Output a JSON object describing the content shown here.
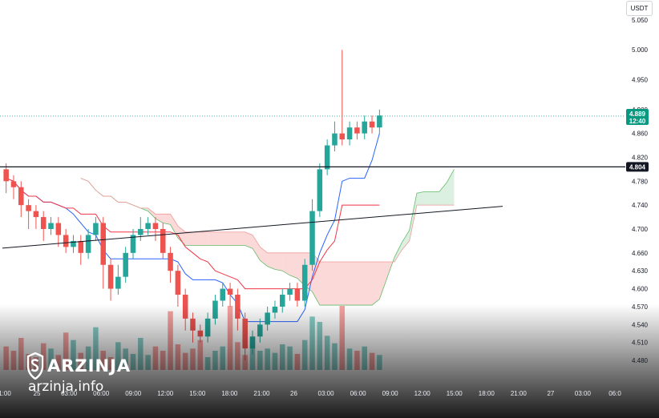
{
  "currency": "USDT",
  "watermark": {
    "name": "ARZINJA",
    "url": "arzinja.info"
  },
  "colors": {
    "up": "#26a69a",
    "down": "#ef5350",
    "conversion": "#2962ff",
    "base": "#f23645",
    "cloud_bull": "#b7e1c1",
    "cloud_bear": "#f7b3b3",
    "price_badge": "#089981",
    "level_badge": "#131722"
  },
  "price_badge": {
    "price": "4.889",
    "countdown": "12:40"
  },
  "level_badge": {
    "price": "4.804"
  },
  "chart_data": {
    "type": "candlestick",
    "y_ticks": [
      "5.050",
      "5.000",
      "4.950",
      "4.900",
      "4.860",
      "4.820",
      "4.780",
      "4.740",
      "4.700",
      "4.660",
      "4.630",
      "4.600",
      "4.570",
      "4.540",
      "4.510",
      "4.480"
    ],
    "x_ticks": [
      "1:00",
      "25",
      "03:00",
      "06:00",
      "09:00",
      "12:00",
      "15:00",
      "18:00",
      "21:00",
      "26",
      "03:00",
      "06:00",
      "09:00",
      "12:00",
      "15:00",
      "18:00",
      "21:00",
      "27",
      "03:00",
      "06:0"
    ],
    "ylim": [
      4.46,
      5.07
    ],
    "current_price": 4.889,
    "horizontal_level": 4.804,
    "trendline": [
      [
        0,
        4.668
      ],
      [
        67,
        4.738
      ]
    ],
    "candles": [
      [
        4.8,
        4.78,
        4.81,
        4.76
      ],
      [
        4.78,
        4.77,
        4.79,
        4.75
      ],
      [
        4.77,
        4.74,
        4.78,
        4.72
      ],
      [
        4.74,
        4.73,
        4.75,
        4.7
      ],
      [
        4.73,
        4.72,
        4.74,
        4.7
      ],
      [
        4.72,
        4.7,
        4.73,
        4.68
      ],
      [
        4.7,
        4.71,
        4.72,
        4.69
      ],
      [
        4.71,
        4.69,
        4.72,
        4.67
      ],
      [
        4.69,
        4.67,
        4.7,
        4.66
      ],
      [
        4.67,
        4.68,
        4.69,
        4.66
      ],
      [
        4.68,
        4.66,
        4.69,
        4.64
      ],
      [
        4.66,
        4.69,
        4.7,
        4.65
      ],
      [
        4.69,
        4.71,
        4.72,
        4.68
      ],
      [
        4.71,
        4.64,
        4.72,
        4.6
      ],
      [
        4.64,
        4.6,
        4.65,
        4.58
      ],
      [
        4.6,
        4.62,
        4.64,
        4.59
      ],
      [
        4.62,
        4.66,
        4.67,
        4.61
      ],
      [
        4.66,
        4.69,
        4.7,
        4.65
      ],
      [
        4.69,
        4.7,
        4.72,
        4.68
      ],
      [
        4.7,
        4.71,
        4.72,
        4.69
      ],
      [
        4.71,
        4.7,
        4.72,
        4.68
      ],
      [
        4.7,
        4.66,
        4.71,
        4.65
      ],
      [
        4.66,
        4.63,
        4.67,
        4.61
      ],
      [
        4.63,
        4.59,
        4.64,
        4.57
      ],
      [
        4.59,
        4.55,
        4.6,
        4.53
      ],
      [
        4.55,
        4.53,
        4.56,
        4.51
      ],
      [
        4.53,
        4.52,
        4.54,
        4.51
      ],
      [
        4.52,
        4.55,
        4.56,
        4.51
      ],
      [
        4.55,
        4.58,
        4.59,
        4.54
      ],
      [
        4.58,
        4.6,
        4.61,
        4.57
      ],
      [
        4.6,
        4.59,
        4.61,
        4.57
      ],
      [
        4.59,
        4.55,
        4.6,
        4.53
      ],
      [
        4.55,
        4.5,
        4.56,
        4.48
      ],
      [
        4.5,
        4.52,
        4.53,
        4.49
      ],
      [
        4.52,
        4.54,
        4.55,
        4.51
      ],
      [
        4.54,
        4.56,
        4.57,
        4.53
      ],
      [
        4.56,
        4.57,
        4.58,
        4.55
      ],
      [
        4.57,
        4.59,
        4.6,
        4.56
      ],
      [
        4.59,
        4.6,
        4.61,
        4.58
      ],
      [
        4.6,
        4.58,
        4.61,
        4.57
      ],
      [
        4.58,
        4.64,
        4.65,
        4.57
      ],
      [
        4.64,
        4.73,
        4.75,
        4.63
      ],
      [
        4.73,
        4.8,
        4.81,
        4.72
      ],
      [
        4.8,
        4.84,
        4.85,
        4.79
      ],
      [
        4.84,
        4.86,
        4.88,
        4.83
      ],
      [
        4.86,
        4.85,
        5.0,
        4.84
      ],
      [
        4.85,
        4.87,
        4.88,
        4.84
      ],
      [
        4.87,
        4.86,
        4.88,
        4.85
      ],
      [
        4.86,
        4.88,
        4.89,
        4.85
      ],
      [
        4.88,
        4.87,
        4.89,
        4.86
      ],
      [
        4.87,
        4.89,
        4.9,
        4.86
      ]
    ],
    "volume": [
      22,
      18,
      30,
      15,
      12,
      25,
      20,
      14,
      35,
      28,
      16,
      22,
      40,
      18,
      12,
      26,
      20,
      15,
      30,
      14,
      22,
      18,
      55,
      24,
      16,
      20,
      28,
      12,
      18,
      22,
      60,
      26,
      14,
      30,
      18,
      20,
      16,
      24,
      22,
      15,
      28,
      50,
      45,
      32,
      25,
      60,
      20,
      18,
      22,
      16,
      14
    ]
  }
}
